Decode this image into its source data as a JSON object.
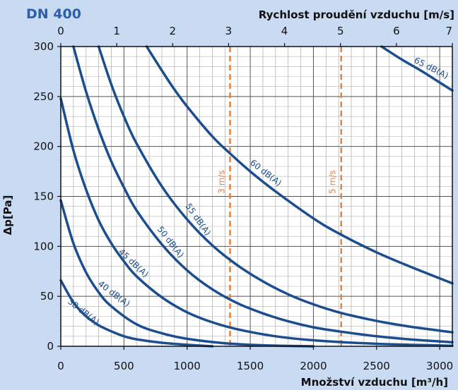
{
  "colors": {
    "background": "#c9daf3",
    "plot_bg": "#ffffff",
    "curve": "#1c4e8f",
    "title": "#2c5fa8",
    "velocity_line": "#e8823a",
    "grid": "#b4b4b4",
    "text": "#111111"
  },
  "chart_data": {
    "type": "line",
    "title": "DN 400",
    "xlabel": "Množství vzduchu [m³/h]",
    "x2label": "Rychlost proudění vzduchu [m/s]",
    "ylabel": "Δp[Pa]",
    "xlim": [
      0,
      3100
    ],
    "ylim": [
      0,
      300
    ],
    "x2lim": [
      0,
      7
    ],
    "x_ticks": [
      "0",
      "500",
      "1000",
      "1500",
      "2000",
      "2500",
      "3000"
    ],
    "x_tick_values": [
      0,
      500,
      1000,
      1500,
      2000,
      2500,
      3000
    ],
    "y_ticks": [
      "0",
      "50",
      "100",
      "150",
      "200",
      "250",
      "300"
    ],
    "y_tick_values": [
      0,
      50,
      100,
      150,
      200,
      250,
      300
    ],
    "x2_ticks": [
      "0",
      "1",
      "2",
      "3",
      "4",
      "5",
      "6",
      "7"
    ],
    "x2_tick_values": [
      0,
      1,
      2,
      3,
      4,
      5,
      6,
      7
    ],
    "grid": true,
    "velocity_lines": [
      {
        "label": "3 m/s",
        "x": 1340
      },
      {
        "label": "5 m/s",
        "x": 2220
      }
    ],
    "series": [
      {
        "name": "38 dB(A)",
        "x": [
          0,
          100,
          200,
          300,
          400,
          500,
          600,
          800,
          1000,
          1200
        ],
        "y": [
          66,
          44,
          30,
          21,
          15,
          10,
          7,
          3.5,
          1.5,
          0
        ]
      },
      {
        "name": "40 dB(A)",
        "x": [
          0,
          100,
          200,
          300,
          400,
          600,
          800,
          1000,
          1300,
          1600,
          2000
        ],
        "y": [
          146,
          103,
          74,
          54,
          40,
          22,
          13,
          7.5,
          3,
          1,
          0
        ]
      },
      {
        "name": "45 dB(A)",
        "x": [
          0,
          100,
          200,
          300,
          400,
          500,
          600,
          800,
          1000,
          1200,
          1400,
          1700,
          2000,
          2500,
          3100
        ],
        "y": [
          248,
          196,
          157,
          126,
          103,
          85,
          70,
          49,
          34,
          24,
          17,
          10,
          6,
          2.5,
          0.5
        ]
      },
      {
        "name": "50 dB(A)",
        "x": [
          100,
          200,
          300,
          400,
          500,
          600,
          800,
          1000,
          1200,
          1400,
          1600,
          1800,
          2000,
          2200,
          2500,
          2800,
          3100
        ],
        "y": [
          300,
          255,
          217,
          185,
          159,
          136,
          102,
          76,
          57,
          43,
          33,
          25,
          19,
          15,
          10,
          6.5,
          4
        ]
      },
      {
        "name": "55 dB(A)",
        "x": [
          300,
          400,
          500,
          600,
          800,
          1000,
          1200,
          1400,
          1600,
          1800,
          2000,
          2200,
          2400,
          2600,
          2800,
          3100
        ],
        "y": [
          300,
          262,
          230,
          203,
          160,
          127,
          101,
          81,
          65,
          52,
          42,
          34,
          28,
          23,
          19,
          14
        ]
      },
      {
        "name": "60 dB(A)",
        "x": [
          680,
          800,
          900,
          1000,
          1200,
          1340,
          1500,
          1700,
          2000,
          2200,
          2500,
          2800,
          3100
        ],
        "y": [
          300,
          276,
          257,
          240,
          210,
          193,
          175,
          155,
          128,
          113,
          94,
          78,
          63
        ]
      },
      {
        "name": "65 dB(A)",
        "x": [
          2540,
          2700,
          2850,
          3000,
          3100
        ],
        "y": [
          300,
          287,
          276,
          264,
          256
        ]
      }
    ]
  }
}
